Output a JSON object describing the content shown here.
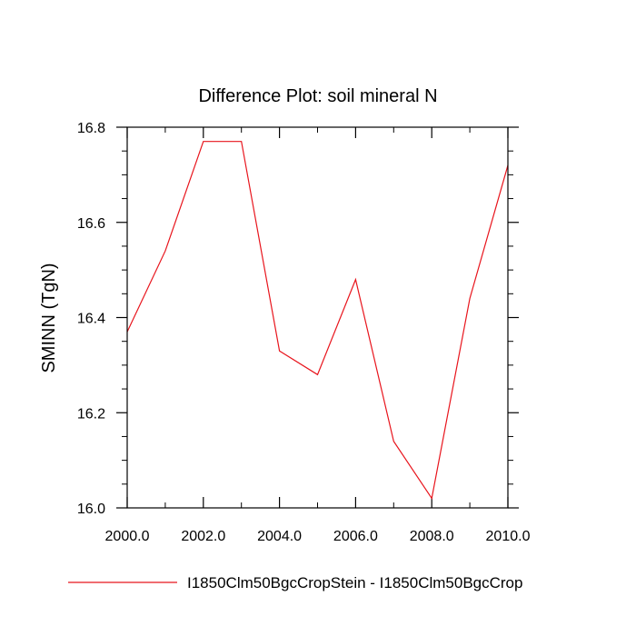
{
  "chart_data": {
    "type": "line",
    "title": "Difference Plot: soil mineral N",
    "xlabel": "",
    "ylabel": "SMINN  (TgN)",
    "xlim": [
      2000,
      2010
    ],
    "ylim": [
      16.0,
      16.8
    ],
    "grid": false,
    "legend_position": "bottom",
    "x_ticks": [
      2000,
      2002,
      2004,
      2006,
      2008,
      2010
    ],
    "x_tick_labels": [
      "2000.0",
      "2002.0",
      "2004.0",
      "2006.0",
      "2008.0",
      "2010.0"
    ],
    "y_ticks": [
      16.0,
      16.2,
      16.4,
      16.6,
      16.8
    ],
    "y_tick_labels": [
      "16.0",
      "16.2",
      "16.4",
      "16.6",
      "16.8"
    ],
    "series": [
      {
        "name": "I1850Clm50BgcCropStein - I1850Clm50BgcCrop",
        "color": "#e8141c",
        "x": [
          2000,
          2001,
          2002,
          2003,
          2004,
          2005,
          2006,
          2007,
          2008,
          2009,
          2010
        ],
        "values": [
          16.37,
          16.54,
          16.77,
          16.77,
          16.33,
          16.28,
          16.48,
          16.14,
          16.02,
          16.44,
          16.72
        ]
      }
    ]
  }
}
